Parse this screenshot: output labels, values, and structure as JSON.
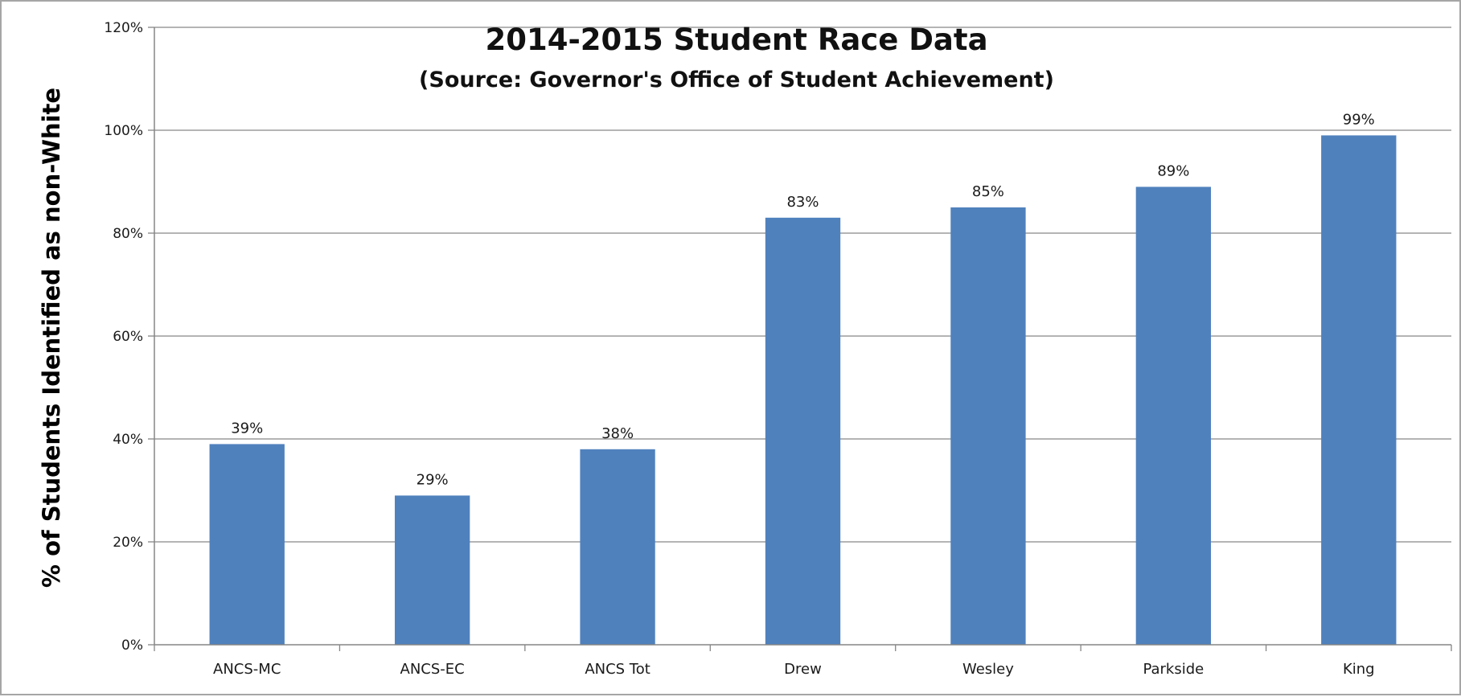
{
  "chart_data": {
    "type": "bar",
    "title": "2014-2015 Student Race Data",
    "subtitle": "(Source: Governor's Office of Student Achievement)",
    "xlabel": "",
    "ylabel": "% of Students Identified as non-White",
    "categories": [
      "ANCS-MC",
      "ANCS-EC",
      "ANCS Tot",
      "Drew",
      "Wesley",
      "Parkside",
      "King"
    ],
    "values": [
      39,
      29,
      38,
      83,
      85,
      89,
      99
    ],
    "data_labels": [
      "39%",
      "29%",
      "38%",
      "83%",
      "85%",
      "89%",
      "99%"
    ],
    "ylim": [
      0,
      120
    ],
    "yticks": [
      0,
      20,
      40,
      60,
      80,
      100,
      120
    ],
    "ytick_labels": [
      "0%",
      "20%",
      "40%",
      "60%",
      "80%",
      "100%",
      "120%"
    ],
    "grid": true,
    "legend": "none",
    "colors": {
      "bar": "#4f81bd",
      "grid": "#868686",
      "axis": "#868686",
      "text": "#1a1a1a"
    }
  }
}
